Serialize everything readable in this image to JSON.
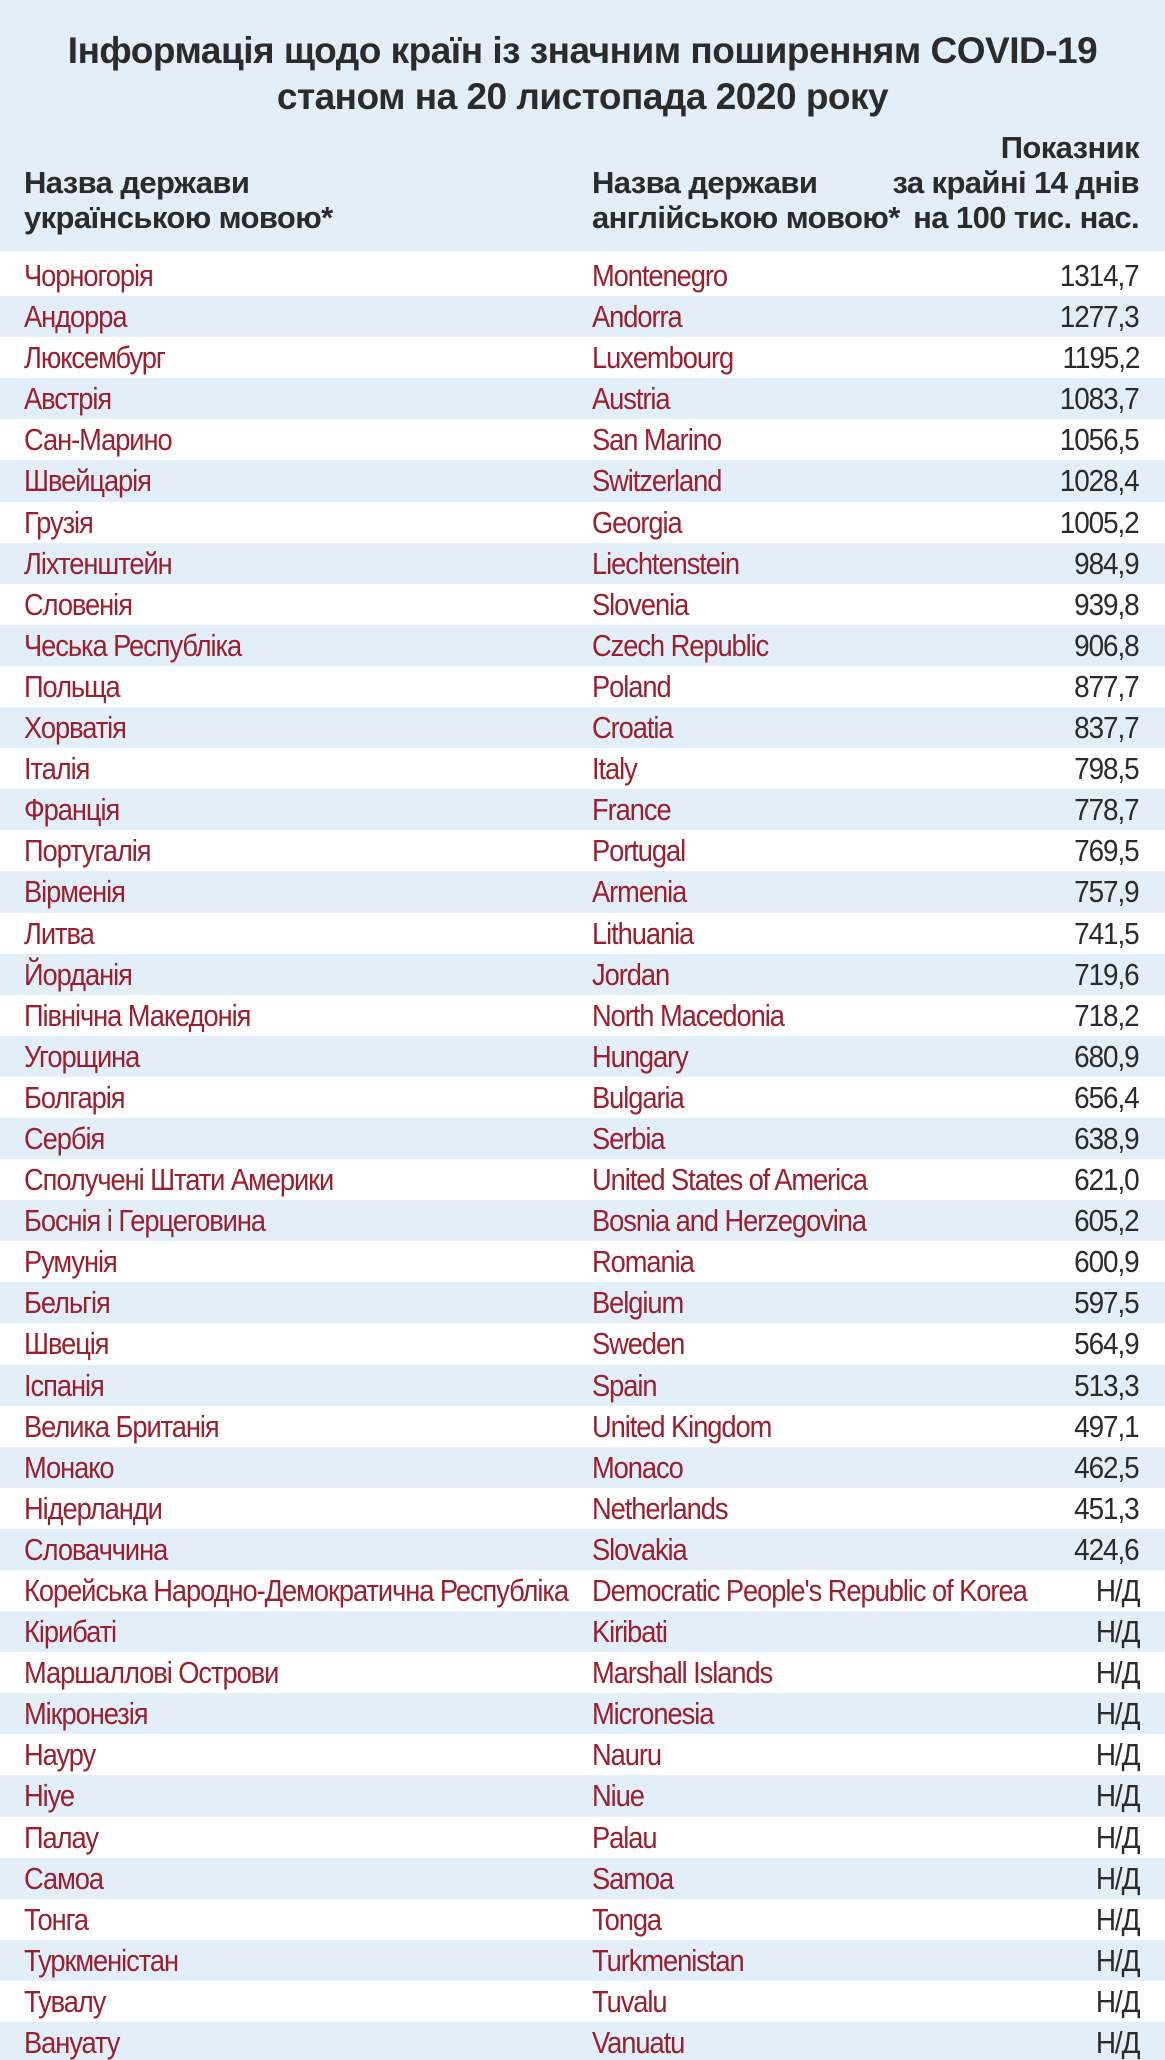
{
  "title": {
    "line1": "Інформація щодо країн із значним поширенням COVID-19",
    "line2": "станом на 20 листопада 2020 року"
  },
  "headers": {
    "ua": [
      "Назва держави",
      "українською мовою*"
    ],
    "en": [
      "Назва держави",
      "англійською мовою*"
    ],
    "value": [
      "Показник",
      "за крайні 14 днів",
      "на 100 тис. нас."
    ]
  },
  "rows": [
    {
      "ua": "Чорногорія",
      "en": "Montenegro",
      "value": "1314,7"
    },
    {
      "ua": "Андорра",
      "en": "Andorra",
      "value": "1277,3"
    },
    {
      "ua": "Люксембург",
      "en": "Luxembourg",
      "value": "1195,2"
    },
    {
      "ua": "Австрія",
      "en": "Austria",
      "value": "1083,7"
    },
    {
      "ua": "Сан-Марино",
      "en": "San Marino",
      "value": "1056,5"
    },
    {
      "ua": "Швейцарія",
      "en": "Switzerland",
      "value": "1028,4"
    },
    {
      "ua": "Грузія",
      "en": "Georgia",
      "value": "1005,2"
    },
    {
      "ua": "Ліхтенштейн",
      "en": "Liechtenstein",
      "value": "984,9"
    },
    {
      "ua": "Словенія",
      "en": "Slovenia",
      "value": "939,8"
    },
    {
      "ua": "Чеська Республіка",
      "en": "Czech Republic",
      "value": "906,8"
    },
    {
      "ua": "Польща",
      "en": "Poland",
      "value": "877,7"
    },
    {
      "ua": "Хорватія",
      "en": "Croatia",
      "value": "837,7"
    },
    {
      "ua": "Італія",
      "en": "Italy",
      "value": "798,5"
    },
    {
      "ua": "Франція",
      "en": "France",
      "value": "778,7"
    },
    {
      "ua": "Португалія",
      "en": "Portugal",
      "value": "769,5"
    },
    {
      "ua": "Вірменія",
      "en": "Armenia",
      "value": "757,9"
    },
    {
      "ua": "Литва",
      "en": "Lithuania",
      "value": "741,5"
    },
    {
      "ua": "Йорданія",
      "en": "Jordan",
      "value": "719,6"
    },
    {
      "ua": "Північна Македонія",
      "en": "North Macedonia",
      "value": "718,2"
    },
    {
      "ua": "Угорщина",
      "en": "Hungary",
      "value": "680,9"
    },
    {
      "ua": "Болгарія",
      "en": "Bulgaria",
      "value": "656,4"
    },
    {
      "ua": "Сербія",
      "en": "Serbia",
      "value": "638,9"
    },
    {
      "ua": "Сполучені Штати Америки",
      "en": "United States of America",
      "value": "621,0"
    },
    {
      "ua": "Боснія і Герцеговина",
      "en": "Bosnia and Herzegovina",
      "value": "605,2"
    },
    {
      "ua": "Румунія",
      "en": "Romania",
      "value": "600,9"
    },
    {
      "ua": "Бельгія",
      "en": "Belgium",
      "value": "597,5"
    },
    {
      "ua": "Швеція",
      "en": "Sweden",
      "value": "564,9"
    },
    {
      "ua": "Іспанія",
      "en": "Spain",
      "value": "513,3"
    },
    {
      "ua": "Велика Британія",
      "en": "United Kingdom",
      "value": "497,1"
    },
    {
      "ua": "Монако",
      "en": "Monaco",
      "value": "462,5"
    },
    {
      "ua": "Нідерланди",
      "en": "Netherlands",
      "value": "451,3"
    },
    {
      "ua": "Словаччина",
      "en": "Slovakia",
      "value": "424,6"
    },
    {
      "ua": "Корейська Народно-Демократична Республіка",
      "en": "Democratic People's Republic of Korea",
      "value": "Н/Д"
    },
    {
      "ua": "Кірибаті",
      "en": "Kiribati",
      "value": "Н/Д"
    },
    {
      "ua": "Маршаллові Острови",
      "en": "Marshall Islands",
      "value": "Н/Д"
    },
    {
      "ua": "Мікронезія",
      "en": "Micronesia",
      "value": "Н/Д"
    },
    {
      "ua": "Науру",
      "en": "Nauru",
      "value": "Н/Д"
    },
    {
      "ua": "Ніуе",
      "en": "Niue",
      "value": "Н/Д"
    },
    {
      "ua": "Палау",
      "en": "Palau",
      "value": "Н/Д"
    },
    {
      "ua": "Самоа",
      "en": "Samoa",
      "value": "Н/Д"
    },
    {
      "ua": "Тонга",
      "en": "Tonga",
      "value": "Н/Д"
    },
    {
      "ua": "Туркменістан",
      "en": "Turkmenistan",
      "value": "Н/Д"
    },
    {
      "ua": "Тувалу",
      "en": "Tuvalu",
      "value": "Н/Д"
    },
    {
      "ua": "Вануату",
      "en": "Vanuatu",
      "value": "Н/Д"
    }
  ]
}
